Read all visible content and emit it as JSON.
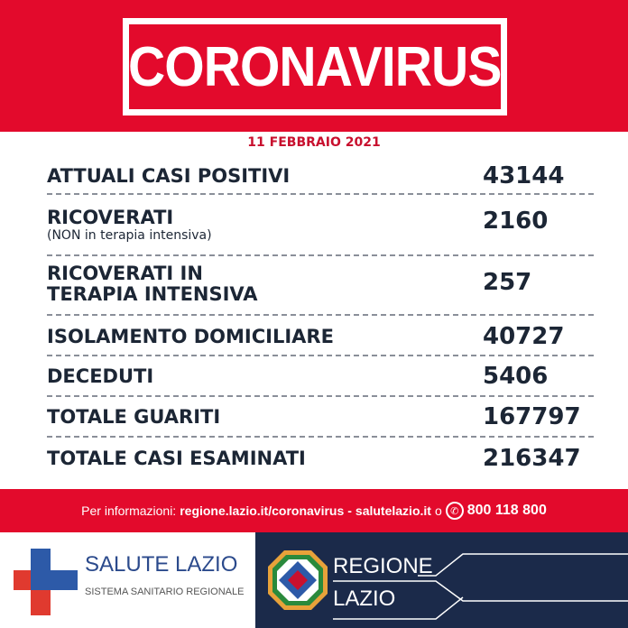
{
  "header": {
    "title": "CORONAVIRUS"
  },
  "date": "11 FEBBRAIO 2021",
  "rows": [
    {
      "label": "ATTUALI CASI POSITIVI",
      "value": "43144"
    },
    {
      "label": "RICOVERATI",
      "sub": "(NON in terapia intensiva)",
      "value": "2160"
    },
    {
      "label": "RICOVERATI IN",
      "label2": "TERAPIA INTENSIVA",
      "value": "257"
    },
    {
      "label": "ISOLAMENTO DOMICILIARE",
      "value": "40727"
    },
    {
      "label": "DECEDUTI",
      "value": "5406"
    },
    {
      "label": "TOTALE GUARITI",
      "value": "167797"
    },
    {
      "label": "TOTALE CASI ESAMINATI",
      "value": "216347"
    }
  ],
  "info": {
    "prefix": "Per informazioni:",
    "link1": "regione.lazio.it/coronavirus",
    "sep": "-",
    "link2": "salutelazio.it",
    "or": "o",
    "phone": "800 118 800",
    "icon": "phone-icon"
  },
  "footer": {
    "salute_title": "SALUTE LAZIO",
    "salute_sub": "SISTEMA SANITARIO REGIONALE",
    "regione_1": "REGIONE",
    "regione_2": "LAZIO"
  },
  "colors": {
    "red": "#e30a2c",
    "navy": "#1b2a4a",
    "text": "#1c2635",
    "blue": "#2b4a8c"
  }
}
